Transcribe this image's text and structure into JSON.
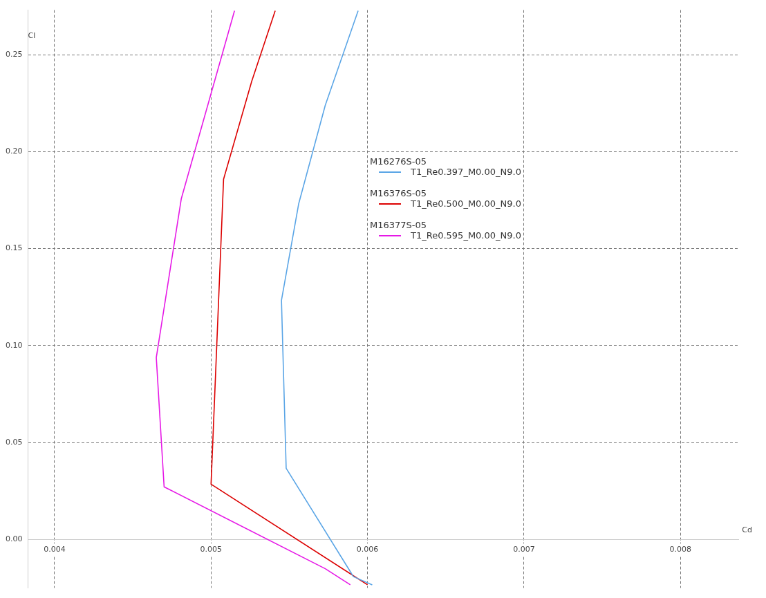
{
  "chart_data": {
    "type": "line",
    "xlabel": "Cd",
    "ylabel": "Cl",
    "xlim": [
      0.00383,
      0.00837
    ],
    "ylim": [
      -0.025,
      0.273
    ],
    "xticks": [
      0.004,
      0.005,
      0.006,
      0.007,
      0.008
    ],
    "yticks": [
      {
        "value": 0,
        "label": "0.00"
      },
      {
        "value": 0.05,
        "label": "0.05"
      },
      {
        "value": 0.1,
        "label": "0.10"
      },
      {
        "value": 0.15,
        "label": "0.15"
      },
      {
        "value": 0.2,
        "label": "0.20"
      },
      {
        "value": 0.25,
        "label": "0.25"
      }
    ],
    "grid": true,
    "legend": "right",
    "marker": "none",
    "line_style": "solid",
    "annotations": [
      "M16276S-05",
      "M16376S-05",
      "M16377S-05"
    ],
    "series": [
      {
        "name": "T1_Re0.397_M0.00_N9.0",
        "color": "#5aa5e6",
        "x": [
          0.00594,
          0.00573,
          0.00556,
          0.00545,
          0.00548,
          0.00591,
          0.00603
        ],
        "values": [
          0.2727,
          0.2239,
          0.1731,
          0.1233,
          0.0367,
          -0.0192,
          -0.0234
        ]
      },
      {
        "name": "T1_Re0.500_M0.00_N9.0",
        "color": "#dc0000",
        "x": [
          0.00541,
          0.00526,
          0.00508,
          0.005,
          0.006
        ],
        "values": [
          0.2727,
          0.2363,
          0.1858,
          0.0285,
          -0.0234
        ]
      },
      {
        "name": "T1_Re0.595_M0.00_N9.0",
        "color": "#e619e6",
        "x": [
          0.00515,
          0.00481,
          0.00465,
          0.0047,
          0.00573,
          0.00589
        ],
        "values": [
          0.2727,
          0.1758,
          0.0938,
          0.0271,
          -0.0151,
          -0.0234
        ]
      }
    ]
  }
}
